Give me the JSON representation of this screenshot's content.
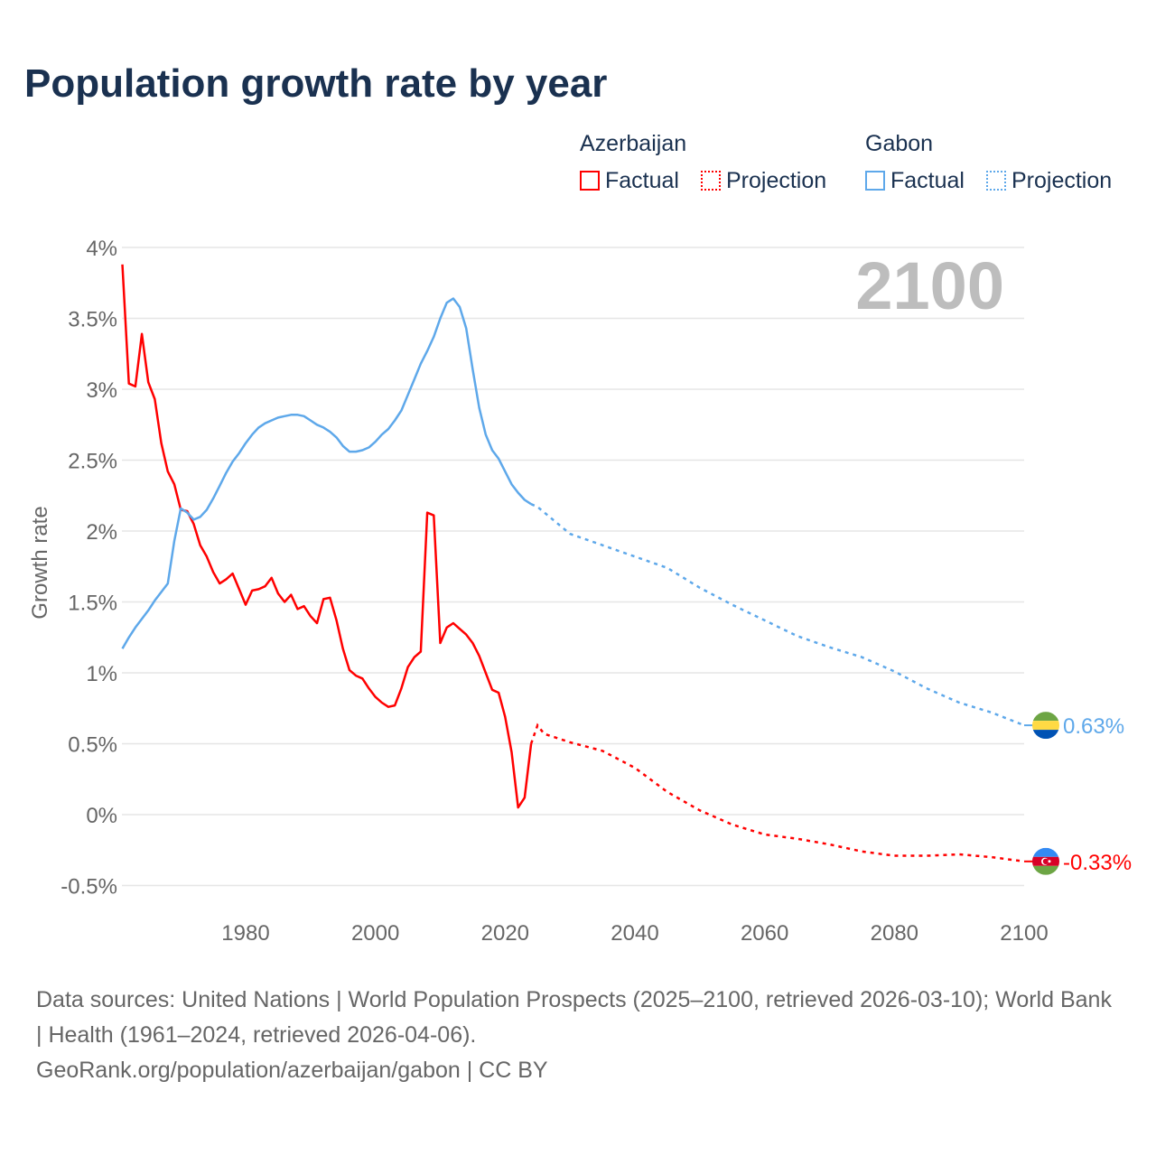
{
  "chart_data": {
    "type": "line",
    "title": "Population growth rate by year",
    "ylabel": "Growth rate",
    "xlabel": "",
    "ylim": [
      -0.5,
      4
    ],
    "xlim": [
      1961,
      2100
    ],
    "yticks": [
      "-0.5%",
      "0%",
      "0.5%",
      "1%",
      "1.5%",
      "2%",
      "2.5%",
      "3%",
      "3.5%",
      "4%"
    ],
    "ytick_values": [
      -0.5,
      0,
      0.5,
      1,
      1.5,
      2,
      2.5,
      3,
      3.5,
      4
    ],
    "xticks": [
      "1980",
      "2000",
      "2020",
      "2040",
      "2060",
      "2080",
      "2100"
    ],
    "xtick_values": [
      1980,
      2000,
      2020,
      2040,
      2060,
      2080,
      2100
    ],
    "year_label": "2100",
    "legend": {
      "groups": [
        {
          "name": "Azerbaijan",
          "items": [
            "Factual",
            "Projection"
          ]
        },
        {
          "name": "Gabon",
          "items": [
            "Factual",
            "Projection"
          ]
        }
      ]
    },
    "series": [
      {
        "name": "Azerbaijan",
        "color": "#ff0000",
        "end_label": "-0.33%",
        "factual": {
          "x": [
            1961,
            1962,
            1963,
            1964,
            1965,
            1966,
            1967,
            1968,
            1969,
            1970,
            1971,
            1972,
            1973,
            1974,
            1975,
            1976,
            1977,
            1978,
            1979,
            1980,
            1981,
            1982,
            1983,
            1984,
            1985,
            1986,
            1987,
            1988,
            1989,
            1990,
            1991,
            1992,
            1993,
            1994,
            1995,
            1996,
            1997,
            1998,
            1999,
            2000,
            2001,
            2002,
            2003,
            2004,
            2005,
            2006,
            2007,
            2008,
            2009,
            2010,
            2011,
            2012,
            2013,
            2014,
            2015,
            2016,
            2017,
            2018,
            2019,
            2020,
            2021,
            2022,
            2023,
            2024
          ],
          "y": [
            3.88,
            3.04,
            3.02,
            3.39,
            3.05,
            2.93,
            2.62,
            2.42,
            2.33,
            2.15,
            2.14,
            2.05,
            1.9,
            1.82,
            1.71,
            1.63,
            1.66,
            1.7,
            1.59,
            1.48,
            1.58,
            1.59,
            1.61,
            1.67,
            1.56,
            1.5,
            1.55,
            1.45,
            1.47,
            1.4,
            1.35,
            1.52,
            1.53,
            1.37,
            1.17,
            1.02,
            0.98,
            0.96,
            0.89,
            0.83,
            0.79,
            0.76,
            0.77,
            0.89,
            1.04,
            1.11,
            1.15,
            2.13,
            2.11,
            1.21,
            1.32,
            1.35,
            1.31,
            1.27,
            1.21,
            1.12,
            1.0,
            0.88,
            0.86,
            0.69,
            0.44,
            0.05,
            0.12,
            0.5
          ]
        },
        "projection": {
          "x": [
            2024,
            2025,
            2026,
            2030,
            2035,
            2040,
            2045,
            2050,
            2055,
            2060,
            2065,
            2070,
            2075,
            2080,
            2085,
            2090,
            2095,
            2100
          ],
          "y": [
            0.5,
            0.63,
            0.57,
            0.51,
            0.45,
            0.33,
            0.16,
            0.03,
            -0.07,
            -0.14,
            -0.17,
            -0.21,
            -0.26,
            -0.29,
            -0.29,
            -0.28,
            -0.3,
            -0.33
          ]
        }
      },
      {
        "name": "Gabon",
        "color": "#5ea8ea",
        "end_label": "0.63%",
        "factual": {
          "x": [
            1961,
            1962,
            1963,
            1964,
            1965,
            1966,
            1967,
            1968,
            1969,
            1970,
            1971,
            1972,
            1973,
            1974,
            1975,
            1976,
            1977,
            1978,
            1979,
            1980,
            1981,
            1982,
            1983,
            1984,
            1985,
            1986,
            1987,
            1988,
            1989,
            1990,
            1991,
            1992,
            1993,
            1994,
            1995,
            1996,
            1997,
            1998,
            1999,
            2000,
            2001,
            2002,
            2003,
            2004,
            2005,
            2006,
            2007,
            2008,
            2009,
            2010,
            2011,
            2012,
            2013,
            2014,
            2015,
            2016,
            2017,
            2018,
            2019,
            2020,
            2021,
            2022,
            2023,
            2024
          ],
          "y": [
            1.17,
            1.25,
            1.32,
            1.38,
            1.44,
            1.51,
            1.57,
            1.63,
            1.93,
            2.16,
            2.13,
            2.08,
            2.1,
            2.15,
            2.23,
            2.32,
            2.41,
            2.49,
            2.55,
            2.62,
            2.68,
            2.73,
            2.76,
            2.78,
            2.8,
            2.81,
            2.82,
            2.82,
            2.81,
            2.78,
            2.75,
            2.73,
            2.7,
            2.66,
            2.6,
            2.56,
            2.56,
            2.57,
            2.59,
            2.63,
            2.68,
            2.72,
            2.78,
            2.85,
            2.96,
            3.07,
            3.18,
            3.27,
            3.37,
            3.5,
            3.61,
            3.64,
            3.58,
            3.43,
            3.14,
            2.87,
            2.68,
            2.57,
            2.51,
            2.42,
            2.33,
            2.27,
            2.22,
            2.19
          ]
        },
        "projection": {
          "x": [
            2024,
            2025,
            2030,
            2035,
            2040,
            2045,
            2050,
            2055,
            2060,
            2065,
            2070,
            2075,
            2080,
            2085,
            2090,
            2095,
            2100
          ],
          "y": [
            2.19,
            2.17,
            1.98,
            1.9,
            1.82,
            1.74,
            1.6,
            1.48,
            1.37,
            1.26,
            1.18,
            1.11,
            1.01,
            0.89,
            0.79,
            0.72,
            0.63
          ]
        }
      }
    ]
  },
  "footer": {
    "line1": "Data sources: United Nations | World Population Prospects (2025–2100, retrieved 2026-03-10); World Bank | Health (1961–2024, retrieved 2026-04-06).",
    "line2": "GeoRank.org/population/azerbaijan/gabon | CC BY"
  }
}
